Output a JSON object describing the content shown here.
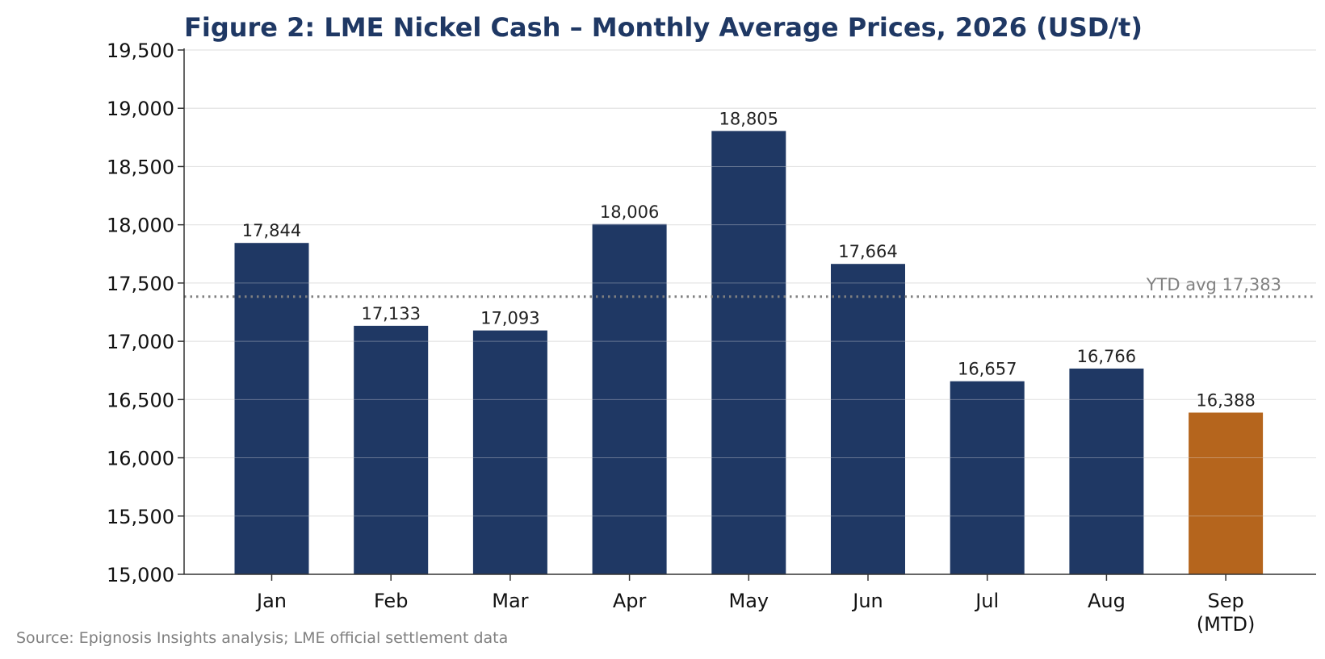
{
  "chart_data": {
    "type": "bar",
    "title": "Figure 2: LME Nickel Cash – Monthly Average Prices, 2026 (USD/t)",
    "xlabel": "",
    "ylabel": "",
    "categories": [
      "Jan",
      "Feb",
      "Mar",
      "Apr",
      "May",
      "Jun",
      "Jul",
      "Aug",
      "Sep\n(MTD)"
    ],
    "values": [
      17844,
      17133,
      17093,
      18006,
      18805,
      17664,
      16657,
      16766,
      16388
    ],
    "data_labels": [
      "17,844",
      "17,133",
      "17,093",
      "18,006",
      "18,805",
      "17,664",
      "16,657",
      "16,766",
      "16,388"
    ],
    "bar_colors": [
      "#1f3864",
      "#1f3864",
      "#1f3864",
      "#1f3864",
      "#1f3864",
      "#1f3864",
      "#1f3864",
      "#1f3864",
      "#b5651d"
    ],
    "ylim": [
      15000,
      19500
    ],
    "yticks": [
      15000,
      15500,
      16000,
      16500,
      17000,
      17500,
      18000,
      18500,
      19000,
      19500
    ],
    "ytick_labels": [
      "15,000",
      "15,500",
      "16,000",
      "16,500",
      "17,000",
      "17,500",
      "18,000",
      "18,500",
      "19,000",
      "19,500"
    ],
    "grid": true,
    "legend": "none",
    "reference_line": {
      "value": 17383,
      "label": "YTD avg 17,383",
      "style": "dotted",
      "color": "#808080"
    },
    "source": "Source: Epignosis Insights analysis; LME official settlement data"
  }
}
